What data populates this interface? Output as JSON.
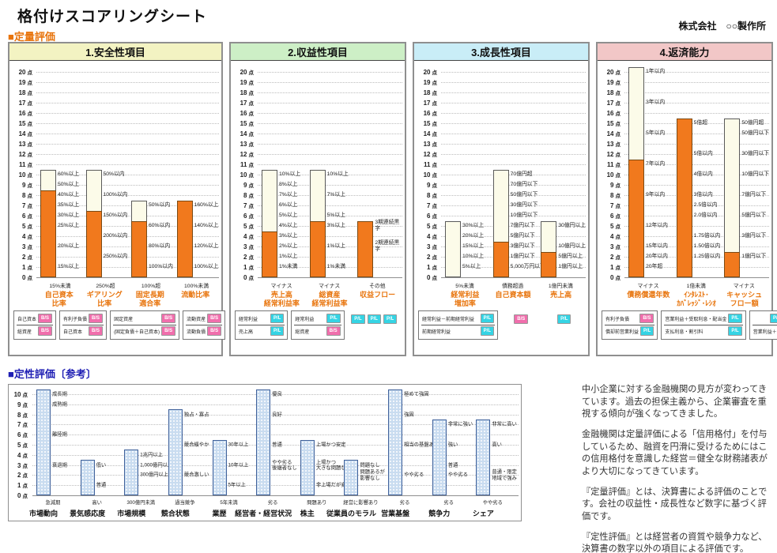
{
  "title": "格付けスコアリングシート",
  "company": "株式会社　○○製作所",
  "section_quantitative": "■定量評価",
  "section_qualitative": "■定性評価〔参考〕",
  "point_suffix": "点",
  "colors": {
    "accent_orange": "#E8740C",
    "bar_fill": "#F1791D",
    "bar_bg": "#FCFBE9",
    "section_quant_label": "#E8740C",
    "section_qual_label": "#1F1FB4",
    "badge_pl": "#35D4E4",
    "badge_bs": "#F06EAC",
    "qual_bar_fill": "#C9DCF0",
    "qual_bar_border": "#41629B"
  },
  "badge_labels": {
    "pl": "P/L",
    "bs": "B/S"
  },
  "chart_data": [
    {
      "type": "bar",
      "id": "safety",
      "title": "1.安全性項目",
      "header_bg": "#F3F3C2",
      "axis_max": 20,
      "ylim": [
        0,
        20
      ],
      "bars": [
        {
          "name": "自己資本比率",
          "label": "自己資本\n比率",
          "max": 10,
          "score": 8,
          "thresholds": [
            [
              10,
              "60%以上"
            ],
            [
              9,
              "50%以上"
            ],
            [
              8,
              "40%以上"
            ],
            [
              7,
              "35%以上"
            ],
            [
              6,
              "30%以上"
            ],
            [
              5,
              "25%以上"
            ],
            [
              3,
              "20%以上"
            ],
            [
              1,
              "15%以上"
            ]
          ],
          "zero_label": "15%未満"
        },
        {
          "name": "ギアリング比率",
          "label": "ギアリング\n比率",
          "max": 10,
          "score": 6,
          "thresholds": [
            [
              10,
              "50%以内"
            ],
            [
              8,
              "100%以内"
            ],
            [
              6,
              "150%以内"
            ],
            [
              4,
              "200%以内"
            ],
            [
              2,
              "250%以内"
            ]
          ],
          "zero_label": "250%超"
        },
        {
          "name": "固定長期適合率",
          "label": "固定長期\n適合率",
          "max": 7,
          "score": 5,
          "thresholds": [
            [
              7,
              "50%以内"
            ],
            [
              5,
              "60%以内"
            ],
            [
              3,
              "80%以内"
            ],
            [
              1,
              "100%以内"
            ]
          ],
          "zero_label": "100%超"
        },
        {
          "name": "流動比率",
          "label": "流動比率",
          "max": 7,
          "score": 7,
          "thresholds": [
            [
              7,
              "160%以上"
            ],
            [
              5,
              "140%以上"
            ],
            [
              3,
              "120%以上"
            ],
            [
              1,
              "100%以上"
            ]
          ],
          "zero_label": "100%未満"
        }
      ],
      "formulas": [
        {
          "boxed": true,
          "w": 1,
          "rows": [
            {
              "text": "自己資本",
              "badge": "bs"
            },
            {
              "text": "総資産",
              "badge": "bs"
            }
          ]
        },
        {
          "boxed": true,
          "w": 1,
          "rows": [
            {
              "text": "有利子負債",
              "badge": "bs"
            },
            {
              "text": "自己資本",
              "badge": "bs"
            }
          ]
        },
        {
          "boxed": true,
          "w": 1.15,
          "rows": [
            {
              "text": "固定資産",
              "badge": "bs"
            },
            {
              "text": "(固定負債＋自己資本)",
              "badge": "bs"
            }
          ]
        },
        {
          "boxed": true,
          "w": 1,
          "rows": [
            {
              "text": "流動資産",
              "badge": "bs"
            },
            {
              "text": "流動負債",
              "badge": "bs"
            }
          ]
        }
      ]
    },
    {
      "type": "bar",
      "id": "profitability",
      "title": "2.収益性項目",
      "header_bg": "#CDEFC6",
      "axis_max": 20,
      "ylim": [
        0,
        20
      ],
      "bars": [
        {
          "name": "売上高経常利益率",
          "label": "売上高\n経常利益率",
          "max": 10,
          "score": 4,
          "thresholds": [
            [
              10,
              "10%以上"
            ],
            [
              9,
              "8%以上"
            ],
            [
              8,
              "7%以上"
            ],
            [
              7,
              "6%以上"
            ],
            [
              6,
              "5%以上"
            ],
            [
              5,
              "4%以上"
            ],
            [
              4,
              "3%以上"
            ],
            [
              3,
              "2%以上"
            ],
            [
              2,
              "1%以上"
            ],
            [
              1,
              "1%未満"
            ]
          ],
          "zero_label": "マイナス"
        },
        {
          "name": "総資産経常利益率",
          "label": "総資産\n経常利益率",
          "max": 10,
          "score": 5,
          "thresholds": [
            [
              10,
              "10%以上"
            ],
            [
              8,
              "7%以上"
            ],
            [
              6,
              "5%以上"
            ],
            [
              5,
              "3%以上"
            ],
            [
              3,
              "1%以上"
            ],
            [
              1,
              "1%未満"
            ]
          ],
          "zero_label": "マイナス"
        },
        {
          "name": "収益フロー",
          "label": "収益フロー",
          "max": 5,
          "score": 5,
          "thresholds": [
            [
              5,
              "3期連続黒字"
            ],
            [
              3,
              "2期連続黒字"
            ]
          ],
          "zero_label": "その他"
        }
      ],
      "formulas": [
        {
          "boxed": true,
          "w": 1,
          "rows": [
            {
              "text": "経常利益",
              "badge": "pl"
            },
            {
              "text": "売上高",
              "badge": "pl"
            }
          ]
        },
        {
          "boxed": true,
          "w": 1,
          "rows": [
            {
              "text": "経常利益",
              "badge": "pl"
            },
            {
              "text": "総資産",
              "badge": "bs"
            }
          ]
        },
        {
          "boxed": false,
          "w": 1,
          "rows": [
            {
              "badges": [
                "pl",
                "pl",
                "pl"
              ]
            }
          ]
        }
      ]
    },
    {
      "type": "bar",
      "id": "growth",
      "title": "3.成長性項目",
      "header_bg": "#C9EDF7",
      "axis_max": 20,
      "ylim": [
        0,
        20
      ],
      "bars": [
        {
          "name": "経常利益増加率",
          "label": "経常利益\n増加率",
          "max": 5,
          "score": 0,
          "thresholds": [
            [
              5,
              "30%以上"
            ],
            [
              4,
              "20%以上"
            ],
            [
              3,
              "15%以上"
            ],
            [
              2,
              "10%以上"
            ],
            [
              1,
              "5%以上"
            ]
          ],
          "zero_label": "5%未満"
        },
        {
          "name": "自己資本額",
          "label": "自己資本額",
          "max": 10,
          "score": 3,
          "thresholds": [
            [
              10,
              "70億円超"
            ],
            [
              9,
              "70億円以下"
            ],
            [
              8,
              "50億円以下"
            ],
            [
              7,
              "30億円以下"
            ],
            [
              6,
              "10億円以下"
            ],
            [
              5,
              "7億円以下"
            ],
            [
              4,
              "5億円以下"
            ],
            [
              3,
              "3億円以下"
            ],
            [
              2,
              "1億円以下"
            ],
            [
              1,
              "5,000万円以下"
            ]
          ],
          "zero_label": "債務超過"
        },
        {
          "name": "売上高",
          "label": "売上高",
          "max": 5,
          "score": 2,
          "thresholds": [
            [
              5,
              "30億円以上"
            ],
            [
              3,
              "10億円以上"
            ],
            [
              2,
              "5億円以上"
            ],
            [
              1,
              "1億円以上"
            ]
          ],
          "zero_label": "1億円未満"
        }
      ],
      "formulas": [
        {
          "boxed": true,
          "w": 1.5,
          "rows": [
            {
              "text": "経常利益－前期経常利益",
              "badge": "pl"
            },
            {
              "text": "前期経常利益",
              "badge": "pl"
            }
          ]
        },
        {
          "boxed": false,
          "w": 0.75,
          "rows": [
            {
              "badges": [
                "bs"
              ]
            }
          ]
        },
        {
          "boxed": false,
          "w": 0.75,
          "rows": [
            {
              "badges": [
                "pl"
              ]
            }
          ]
        }
      ]
    },
    {
      "type": "bar",
      "id": "repayment",
      "title": "4.返済能力",
      "header_bg": "#F2C7C7",
      "axis_max": 20,
      "ylim": [
        0,
        20
      ],
      "bars": [
        {
          "name": "債務償還年数",
          "label": "債務償還年数",
          "max": 20,
          "score": 11,
          "thresholds": [
            [
              20,
              "1年以内"
            ],
            [
              17,
              "3年以内"
            ],
            [
              14,
              "5年以内"
            ],
            [
              11,
              "7年以内"
            ],
            [
              8,
              "9年以内"
            ],
            [
              5,
              "12年以内"
            ],
            [
              3,
              "15年以内"
            ],
            [
              2,
              "20年以内"
            ],
            [
              1,
              "20年超"
            ]
          ],
          "zero_label": "マイナス"
        },
        {
          "name": "インタレスト・カバレッジ・レシオ",
          "label": "ｲﾝﾀﾚｽﾄ･\nｶﾊﾞﾚｯｼﾞ･ﾚｼｵ",
          "max": 15,
          "score": 15,
          "thresholds": [
            [
              15,
              "5倍超"
            ],
            [
              12,
              "5倍以内"
            ],
            [
              10,
              "4倍以内"
            ],
            [
              8,
              "3倍以内"
            ],
            [
              7,
              "2.5倍以内"
            ],
            [
              6,
              "2.0倍以内"
            ],
            [
              4,
              "1.75倍以内"
            ],
            [
              3,
              "1.50倍以内"
            ],
            [
              2,
              "1.25倍以内"
            ]
          ],
          "zero_label": "1倍未満"
        },
        {
          "name": "キャッシュフロー額",
          "label": "キャッシュ\nフロー額",
          "max": 15,
          "score": 2,
          "thresholds": [
            [
              15,
              "50億円超"
            ],
            [
              14,
              "50億円以下"
            ],
            [
              12,
              "30億円以下"
            ],
            [
              10,
              "10億円以下"
            ],
            [
              8,
              "7億円以下"
            ],
            [
              6,
              "5億円以下"
            ],
            [
              4,
              "3億円以下"
            ],
            [
              2,
              "1億円以下"
            ]
          ],
          "zero_label": "マイナス"
        }
      ],
      "formulas": [
        {
          "boxed": true,
          "w": 0.95,
          "rows": [
            {
              "text": "有利子負債",
              "badge": "bs"
            },
            {
              "text": "償却前営業利益",
              "badge": "pl"
            }
          ]
        },
        {
          "boxed": true,
          "w": 1.35,
          "rows": [
            {
              "text": "営業利益＋受取利息・配当金",
              "badge": "pl"
            },
            {
              "text": "支払利息・割引料",
              "badge": "pl"
            }
          ]
        },
        {
          "boxed": true,
          "w": 0.95,
          "rows": [
            {
              "badges": [
                "pl"
              ]
            },
            {
              "text": "営業利益＋減価償却費"
            }
          ]
        }
      ]
    },
    {
      "type": "bar",
      "id": "qualitative",
      "title": "定性評価",
      "axis_max": 10,
      "ylim": [
        0,
        10
      ],
      "bars": [
        {
          "name": "市場動向",
          "label": "市場動向",
          "score": 10,
          "thresholds": [
            [
              10,
              "成長期"
            ],
            [
              9,
              "成熟期"
            ],
            [
              6,
              "離陸期"
            ],
            [
              3,
              "衰退期"
            ]
          ],
          "zero_label": "急減期"
        },
        {
          "name": "景気感応度",
          "label": "景気感応度",
          "score": 3,
          "thresholds": [
            [
              3,
              "低い"
            ],
            [
              1,
              "普通"
            ]
          ],
          "zero_label": "高い"
        },
        {
          "name": "市場規模",
          "label": "市場規模",
          "score": 4,
          "thresholds": [
            [
              4,
              "1兆円以上"
            ],
            [
              3,
              "1,000億円以上"
            ],
            [
              2,
              "300億円以上"
            ]
          ],
          "zero_label": "300億円未満"
        },
        {
          "name": "競合状態",
          "label": "競合状態",
          "score": 8,
          "thresholds": [
            [
              8,
              "独占・寡占"
            ],
            [
              5,
              "競合緩やか"
            ],
            [
              2,
              "競合激しい"
            ]
          ],
          "zero_label": "過当競争"
        },
        {
          "name": "業歴",
          "label": "業歴",
          "score": 5,
          "thresholds": [
            [
              5,
              "30年以上"
            ],
            [
              3,
              "10年以上"
            ],
            [
              1,
              "5年以上"
            ]
          ],
          "zero_label": "5年未満"
        },
        {
          "name": "経営者・経営状況",
          "label": "経営者・経営状況",
          "score": 10,
          "thresholds": [
            [
              10,
              "優良"
            ],
            [
              8,
              "良好"
            ],
            [
              5,
              "普通"
            ],
            [
              3,
              "やや劣る\n後継者なし"
            ]
          ],
          "zero_label": "劣る"
        },
        {
          "name": "株主",
          "label": "株主",
          "score": 5,
          "thresholds": [
            [
              5,
              "上場かつ安定"
            ],
            [
              3,
              "上場かつ\n大きな問題なし"
            ],
            [
              1,
              "非上場だが安定"
            ]
          ],
          "zero_label": "問題あり"
        },
        {
          "name": "従業員のモラル",
          "label": "従業員のモラル",
          "score": 3,
          "thresholds": [
            [
              3,
              "問題なし"
            ],
            [
              2,
              "問題あるが\n影響なし"
            ]
          ],
          "zero_label": "経営に影響あり"
        },
        {
          "name": "営業基盤",
          "label": "営業基盤",
          "score": 10,
          "thresholds": [
            [
              10,
              "極めて強固"
            ],
            [
              8,
              "強固"
            ],
            [
              5,
              "相当の基盤あり"
            ],
            [
              2,
              "やや劣る"
            ]
          ],
          "zero_label": "劣る"
        },
        {
          "name": "競争力",
          "label": "競争力",
          "score": 7,
          "thresholds": [
            [
              7,
              "非常に強い"
            ],
            [
              5,
              "強い"
            ],
            [
              3,
              "普通"
            ],
            [
              2,
              "やや劣る"
            ]
          ],
          "zero_label": "劣る"
        },
        {
          "name": "シェア",
          "label": "シェア",
          "score": 7,
          "thresholds": [
            [
              7,
              "非常に高い"
            ],
            [
              5,
              "高い"
            ],
            [
              2,
              "普通・限定\n地域で強み"
            ]
          ],
          "zero_label": "やや劣る"
        }
      ]
    }
  ],
  "notes": [
    "中小企業に対する金融機関の見方が変わってきています。過去の担保主義から、企業審査を重視する傾向が強くなってきました。",
    "金融機関は定量評価による「信用格付」を付与しているため、融資を円滑に受けるためにはこの信用格付を意識した経営＝健全な財務諸表がより大切になってきています。",
    "『定量評価』とは、決算書による評価のことです。会社の収益性・成長性など数字に基づく評価です。",
    "『定性評価』とは経営者の資質や競争力など、決算書の数字以外の項目による評価です。"
  ]
}
